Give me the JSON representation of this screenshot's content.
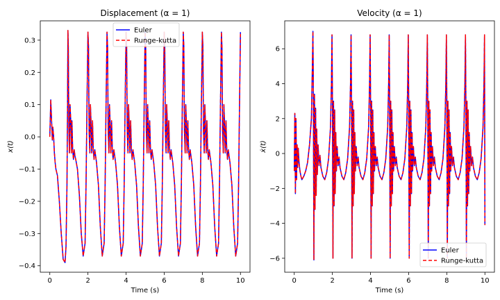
{
  "chart_data": [
    {
      "type": "line",
      "title": "Displacement (α =  1)",
      "xlabel": "Time (s)",
      "ylabel": "x(t)",
      "xlim": [
        -0.5,
        10.5
      ],
      "ylim": [
        -0.42,
        0.36
      ],
      "xticks": [
        0,
        2,
        4,
        6,
        8,
        10
      ],
      "yticks": [
        -0.4,
        -0.3,
        -0.2,
        -0.1,
        0.0,
        0.1,
        0.2,
        0.3
      ],
      "ytick_labels": [
        "−0.4",
        "−0.3",
        "−0.2",
        "−0.1",
        "0.0",
        "0.1",
        "0.2",
        "0.3"
      ],
      "xtick_labels": [
        "0",
        "2",
        "4",
        "6",
        "8",
        "10"
      ],
      "legend": "top-center",
      "grid": false,
      "series": [
        {
          "name": "Euler",
          "color": "#0000ff",
          "style": "solid",
          "x": [
            0.0,
            0.05,
            0.1,
            0.13,
            0.16,
            0.2,
            0.24,
            0.28,
            0.32,
            0.4,
            0.5,
            0.6,
            0.7,
            0.8,
            0.85,
            0.9,
            0.93,
            0.95,
            0.97,
            1.0,
            1.03,
            1.06,
            1.1,
            1.13,
            1.16,
            1.2,
            1.24,
            1.28,
            1.32,
            1.36,
            1.45,
            1.55,
            1.65,
            1.75,
            1.85,
            1.9,
            1.95,
            2.0,
            2.03,
            2.06,
            2.1,
            2.13,
            2.16,
            2.2,
            2.24,
            2.28,
            2.32,
            2.36,
            2.45,
            2.55,
            2.65,
            2.75,
            2.85,
            2.9,
            2.95,
            3.0,
            3.03,
            3.06,
            3.1,
            3.13,
            3.16,
            3.2,
            3.24,
            3.28,
            3.32,
            3.36,
            3.45,
            3.55,
            3.65,
            3.75,
            3.85,
            3.9,
            3.95,
            4.0,
            4.03,
            4.06,
            4.1,
            4.13,
            4.16,
            4.2,
            4.24,
            4.28,
            4.32,
            4.36,
            4.45,
            4.55,
            4.65,
            4.75,
            4.85,
            4.9,
            4.95,
            5.0,
            5.03,
            5.06,
            5.1,
            5.13,
            5.16,
            5.2,
            5.24,
            5.28,
            5.32,
            5.36,
            5.45,
            5.55,
            5.65,
            5.75,
            5.85,
            5.9,
            5.95,
            6.0,
            6.03,
            6.06,
            6.1,
            6.13,
            6.16,
            6.2,
            6.24,
            6.28,
            6.32,
            6.36,
            6.45,
            6.55,
            6.65,
            6.75,
            6.85,
            6.9,
            6.95,
            7.0,
            7.03,
            7.06,
            7.1,
            7.13,
            7.16,
            7.2,
            7.24,
            7.28,
            7.32,
            7.36,
            7.45,
            7.55,
            7.65,
            7.75,
            7.85,
            7.9,
            7.95,
            8.0,
            8.03,
            8.06,
            8.1,
            8.13,
            8.16,
            8.2,
            8.24,
            8.28,
            8.32,
            8.36,
            8.45,
            8.55,
            8.65,
            8.75,
            8.85,
            8.9,
            8.95,
            9.0,
            9.03,
            9.06,
            9.1,
            9.13,
            9.16,
            9.2,
            9.24,
            9.28,
            9.32,
            9.36,
            9.45,
            9.55,
            9.65,
            9.75,
            9.85,
            9.9,
            9.95,
            10.0
          ],
          "y": [
            0.0,
            0.115,
            0.04,
            -0.01,
            0.03,
            0.0,
            -0.05,
            -0.08,
            -0.1,
            -0.12,
            -0.2,
            -0.3,
            -0.38,
            -0.39,
            -0.34,
            -0.15,
            0.1,
            0.33,
            0.28,
            0.02,
            -0.05,
            0.1,
            0.05,
            -0.05,
            0.05,
            -0.04,
            -0.07,
            -0.04,
            -0.06,
            -0.07,
            -0.1,
            -0.18,
            -0.3,
            -0.37,
            -0.33,
            -0.15,
            0.1,
            0.325,
            0.28,
            0.02,
            -0.05,
            0.1,
            0.05,
            -0.05,
            0.05,
            -0.04,
            -0.07,
            -0.04,
            -0.08,
            -0.15,
            -0.28,
            -0.37,
            -0.33,
            -0.15,
            0.1,
            0.325,
            0.28,
            0.02,
            -0.05,
            0.1,
            0.05,
            -0.05,
            0.05,
            -0.04,
            -0.07,
            -0.04,
            -0.08,
            -0.15,
            -0.28,
            -0.37,
            -0.33,
            -0.15,
            0.1,
            0.325,
            0.28,
            0.02,
            -0.05,
            0.1,
            0.05,
            -0.05,
            0.05,
            -0.04,
            -0.07,
            -0.04,
            -0.08,
            -0.15,
            -0.28,
            -0.37,
            -0.33,
            -0.15,
            0.1,
            0.325,
            0.28,
            0.02,
            -0.05,
            0.1,
            0.05,
            -0.05,
            0.05,
            -0.04,
            -0.07,
            -0.04,
            -0.08,
            -0.15,
            -0.28,
            -0.37,
            -0.33,
            -0.15,
            0.1,
            0.325,
            0.28,
            0.02,
            -0.05,
            0.1,
            0.05,
            -0.05,
            0.05,
            -0.04,
            -0.07,
            -0.04,
            -0.08,
            -0.15,
            -0.28,
            -0.37,
            -0.33,
            -0.15,
            0.1,
            0.325,
            0.28,
            0.02,
            -0.05,
            0.1,
            0.05,
            -0.05,
            0.05,
            -0.04,
            -0.07,
            -0.04,
            -0.08,
            -0.15,
            -0.28,
            -0.37,
            -0.33,
            -0.15,
            0.1,
            0.325,
            0.28,
            0.02,
            -0.05,
            0.1,
            0.05,
            -0.05,
            0.05,
            -0.04,
            -0.07,
            -0.04,
            -0.08,
            -0.15,
            -0.28,
            -0.37,
            -0.33,
            -0.15,
            0.1,
            0.325,
            0.28,
            0.02,
            -0.05,
            0.1,
            0.05,
            -0.05,
            0.05,
            -0.04,
            -0.07,
            -0.04,
            -0.08,
            -0.15,
            -0.28,
            -0.37,
            -0.33,
            -0.15,
            0.1,
            0.325
          ]
        },
        {
          "name": "Runge-kutta",
          "color": "#ff0000",
          "style": "dashed",
          "same_as": "Euler"
        }
      ]
    },
    {
      "type": "line",
      "title": "Velocity (α =  1)",
      "xlabel": "Time (s)",
      "ylabel": "ẋ(t)",
      "xlim": [
        -0.5,
        10.5
      ],
      "ylim": [
        -6.8,
        7.6
      ],
      "xticks": [
        0,
        2,
        4,
        6,
        8,
        10
      ],
      "yticks": [
        -6,
        -4,
        -2,
        0,
        2,
        4,
        6
      ],
      "ytick_labels": [
        "−6",
        "−4",
        "−2",
        "0",
        "2",
        "4",
        "6"
      ],
      "xtick_labels": [
        "0",
        "2",
        "4",
        "6",
        "8",
        "10"
      ],
      "legend": "bottom-right",
      "grid": false,
      "series": [
        {
          "name": "Euler",
          "color": "#0000ff",
          "style": "solid",
          "x": [
            0.0,
            0.03,
            0.06,
            0.09,
            0.12,
            0.15,
            0.18,
            0.21,
            0.25,
            0.3,
            0.35,
            0.4,
            0.5,
            0.6,
            0.7,
            0.8,
            0.9,
            0.95,
            0.98,
            1.0,
            1.03,
            1.06,
            1.09,
            1.12,
            1.15,
            1.18,
            1.21,
            1.25,
            1.3,
            1.35,
            1.4,
            1.5,
            1.6,
            1.7,
            1.8,
            1.9,
            1.95,
            1.98,
            2.0,
            2.03,
            2.06,
            2.09,
            2.12,
            2.15,
            2.18,
            2.21,
            2.25,
            2.3,
            2.35,
            2.4,
            2.5,
            2.6,
            2.7,
            2.8,
            2.9,
            2.95,
            2.98,
            3.0,
            3.03,
            3.06,
            3.09,
            3.12,
            3.15,
            3.18,
            3.21,
            3.25,
            3.3,
            3.35,
            3.4,
            3.5,
            3.6,
            3.7,
            3.8,
            3.9,
            3.95,
            3.98,
            4.0,
            4.03,
            4.06,
            4.09,
            4.12,
            4.15,
            4.18,
            4.21,
            4.25,
            4.3,
            4.35,
            4.4,
            4.5,
            4.6,
            4.7,
            4.8,
            4.9,
            4.95,
            4.98,
            5.0,
            5.03,
            5.06,
            5.09,
            5.12,
            5.15,
            5.18,
            5.21,
            5.25,
            5.3,
            5.35,
            5.4,
            5.5,
            5.6,
            5.7,
            5.8,
            5.9,
            5.95,
            5.98,
            6.0,
            6.03,
            6.06,
            6.09,
            6.12,
            6.15,
            6.18,
            6.21,
            6.25,
            6.3,
            6.35,
            6.4,
            6.5,
            6.6,
            6.7,
            6.8,
            6.9,
            6.95,
            6.98,
            7.0,
            7.03,
            7.06,
            7.09,
            7.12,
            7.15,
            7.18,
            7.21,
            7.25,
            7.3,
            7.35,
            7.4,
            7.5,
            7.6,
            7.7,
            7.8,
            7.9,
            7.95,
            7.98,
            8.0,
            8.03,
            8.06,
            8.09,
            8.12,
            8.15,
            8.18,
            8.21,
            8.25,
            8.3,
            8.35,
            8.4,
            8.5,
            8.6,
            8.7,
            8.8,
            8.9,
            8.95,
            8.98,
            9.0,
            9.03,
            9.06,
            9.09,
            9.12,
            9.15,
            9.18,
            9.21,
            9.25,
            9.3,
            9.35,
            9.4,
            9.5,
            9.6,
            9.7,
            9.8,
            9.9,
            9.95,
            9.98,
            10.0
          ],
          "y": [
            -1.0,
            2.3,
            -2.3,
            2.0,
            -1.5,
            0.5,
            -0.8,
            0.3,
            -0.5,
            -1.0,
            -1.3,
            -1.5,
            -1.3,
            -1.0,
            -0.5,
            0.5,
            2.0,
            5.0,
            7.0,
            4.0,
            -6.1,
            3.4,
            -3.2,
            2.6,
            -2.4,
            1.4,
            -1.2,
            0.5,
            -0.7,
            -0.1,
            -0.8,
            -1.3,
            -1.5,
            -1.1,
            -0.3,
            1.5,
            4.0,
            6.8,
            3.5,
            -6.0,
            3.0,
            -3.0,
            2.5,
            -2.3,
            1.2,
            -1.0,
            0.4,
            -0.7,
            -0.2,
            -0.8,
            -1.3,
            -1.5,
            -1.1,
            -0.3,
            1.5,
            4.0,
            6.8,
            3.5,
            -6.0,
            3.0,
            -3.0,
            2.5,
            -2.3,
            1.2,
            -1.0,
            0.4,
            -0.7,
            -0.2,
            -0.8,
            -1.3,
            -1.5,
            -1.1,
            -0.3,
            1.5,
            4.0,
            6.8,
            3.5,
            -6.0,
            3.0,
            -3.0,
            2.5,
            -2.3,
            1.2,
            -1.0,
            0.4,
            -0.7,
            -0.2,
            -0.8,
            -1.3,
            -1.5,
            -1.1,
            -0.3,
            1.5,
            4.0,
            6.8,
            3.5,
            -6.0,
            3.0,
            -3.0,
            2.5,
            -2.3,
            1.2,
            -1.0,
            0.4,
            -0.7,
            -0.2,
            -0.8,
            -1.3,
            -1.5,
            -1.1,
            -0.3,
            1.5,
            4.0,
            6.8,
            3.5,
            -6.0,
            3.0,
            -3.0,
            2.5,
            -2.3,
            1.2,
            -1.0,
            0.4,
            -0.7,
            -0.2,
            -0.8,
            -1.3,
            -1.5,
            -1.1,
            -0.3,
            1.5,
            4.0,
            6.8,
            3.5,
            -6.0,
            3.0,
            -3.0,
            2.5,
            -2.3,
            1.2,
            -1.0,
            0.4,
            -0.7,
            -0.2,
            -0.8,
            -1.3,
            -1.5,
            -1.1,
            -0.3,
            1.5,
            4.0,
            6.8,
            3.5,
            -6.0,
            3.0,
            -3.0,
            2.5,
            -2.3,
            1.2,
            -1.0,
            0.4,
            -0.7,
            -0.2,
            -0.8,
            -1.3,
            -1.5,
            -1.1,
            -0.3,
            1.5,
            4.0,
            6.8,
            3.5,
            -6.0,
            3.0,
            -3.0,
            2.5,
            -2.3,
            1.2,
            -1.0,
            0.4,
            -0.7,
            -0.2,
            -0.8,
            -1.3,
            -1.5,
            -1.1,
            -0.3,
            1.5,
            4.0,
            6.8,
            -4.1
          ]
        },
        {
          "name": "Runge-kutta",
          "color": "#ff0000",
          "style": "dashed",
          "same_as": "Euler"
        }
      ]
    }
  ]
}
